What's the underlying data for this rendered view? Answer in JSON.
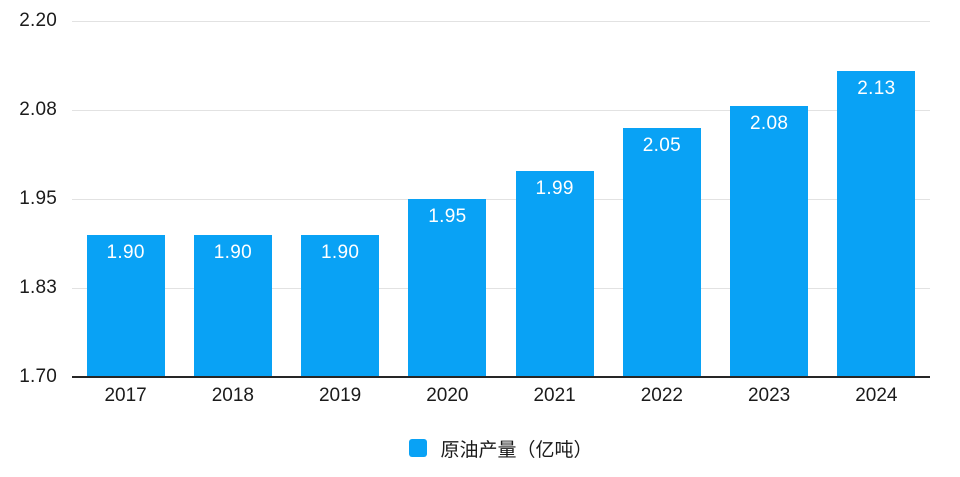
{
  "chart_data": {
    "type": "bar",
    "title": "",
    "xlabel": "",
    "ylabel": "",
    "categories": [
      "2017",
      "2018",
      "2019",
      "2020",
      "2021",
      "2022",
      "2023",
      "2024"
    ],
    "series": [
      {
        "name": "原油产量（亿吨）",
        "values": [
          1.9,
          1.9,
          1.9,
          1.95,
          1.99,
          2.05,
          2.08,
          2.13
        ]
      }
    ],
    "value_labels": [
      "1.90",
      "1.90",
      "1.90",
      "1.95",
      "1.99",
      "2.05",
      "2.08",
      "2.13"
    ],
    "ylim": [
      1.7,
      2.2
    ],
    "ytick_labels_top_to_bottom": [
      "2.20",
      "2.08",
      "1.95",
      "1.83",
      "1.70"
    ],
    "grid": true,
    "legend_position": "bottom"
  },
  "legend": {
    "label": "原油产量（亿吨）"
  },
  "colors": {
    "bar": "#09a2f5",
    "bar_label": "#ffffff",
    "grid": "#e2e2e2",
    "axis_line": "#262626",
    "text": "#1b1b1b",
    "background": "#ffffff"
  }
}
